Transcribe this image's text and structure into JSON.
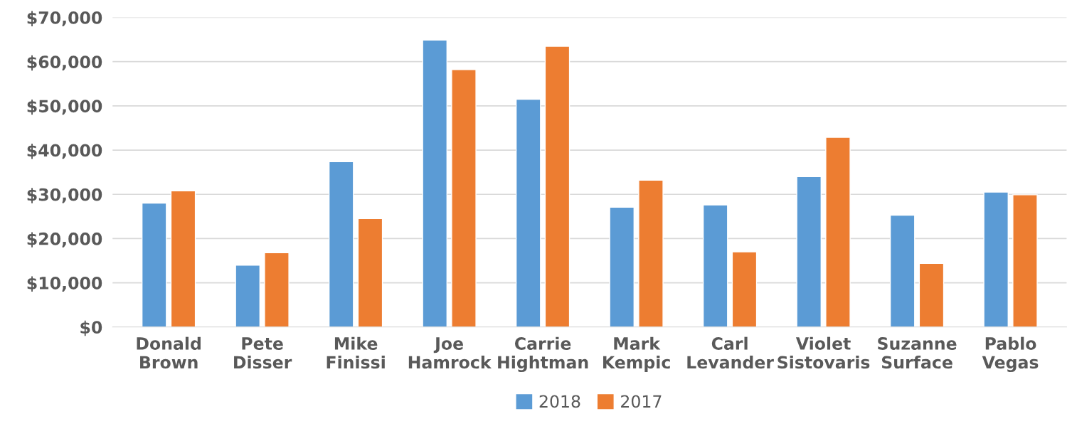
{
  "chart_data": {
    "type": "bar",
    "categories": [
      "Donald\nBrown",
      "Pete\nDisser",
      "Mike\nFinissi",
      "Joe\nHamrock",
      "Carrie\nHightman",
      "Mark\nKempic",
      "Carl\nLevander",
      "Violet\nSistovaris",
      "Suzanne\nSurface",
      "Pablo\nVegas"
    ],
    "series": [
      {
        "name": "2018",
        "color": "#5b9bd5",
        "values": [
          28000,
          14000,
          37400,
          64900,
          51500,
          27100,
          27600,
          34000,
          25300,
          30500
        ]
      },
      {
        "name": "2017",
        "color": "#ed7d31",
        "values": [
          30800,
          16800,
          24500,
          58200,
          63500,
          33200,
          17000,
          42900,
          14400,
          29900
        ]
      }
    ],
    "ylim": [
      0,
      70000
    ],
    "yticks": [
      {
        "value": 0,
        "label": "$0"
      },
      {
        "value": 10000,
        "label": "$10,000"
      },
      {
        "value": 20000,
        "label": "$20,000"
      },
      {
        "value": 30000,
        "label": "$30,000"
      },
      {
        "value": 40000,
        "label": "$40,000"
      },
      {
        "value": 50000,
        "label": "$50,000"
      },
      {
        "value": 60000,
        "label": "$60,000"
      },
      {
        "value": 70000,
        "label": "$70,000"
      }
    ],
    "grid": "y",
    "legend": "bottom"
  }
}
